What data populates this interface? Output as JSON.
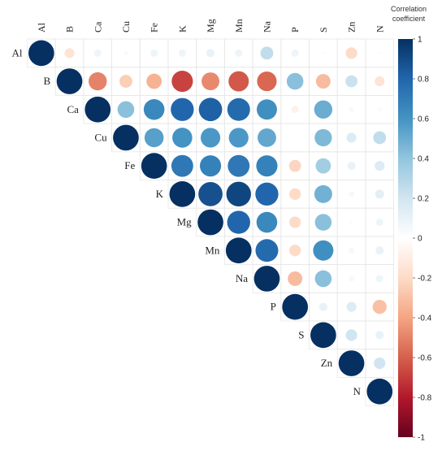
{
  "chart_data": {
    "type": "heatmap",
    "variables": [
      "Al",
      "B",
      "Ca",
      "Cu",
      "Fe",
      "K",
      "Mg",
      "Mn",
      "Na",
      "P",
      "S",
      "Zn",
      "N"
    ],
    "matrix_layout": "upper-triangular with diagonal",
    "legend": {
      "title_line1": "Correlation",
      "title_line2": "coefficient",
      "ticks": [
        "1",
        "0.8",
        "0.6",
        "0.4",
        "0.2",
        "0",
        "-0.2",
        "-0.4",
        "-0.6",
        "-0.8",
        "-1"
      ],
      "range": [
        -1,
        1
      ],
      "placement": "right"
    },
    "color_scale": {
      "negative_end": "#67001f",
      "mid_negative": "#e8826a",
      "zero": "#ffffff",
      "mid_positive": "#5fb6d8",
      "positive_end": "#053061"
    },
    "grid": true,
    "rows": [
      {
        "var": "Al",
        "values": [
          1.0,
          -0.15,
          0.08,
          0.03,
          0.08,
          0.08,
          0.1,
          0.08,
          0.25,
          0.08,
          0.02,
          -0.2,
          0.02
        ]
      },
      {
        "var": "B",
        "values": [
          1.0,
          -0.5,
          -0.25,
          -0.35,
          -0.68,
          -0.48,
          -0.62,
          -0.58,
          0.42,
          -0.32,
          0.22,
          -0.15
        ]
      },
      {
        "var": "Ca",
        "values": [
          1.0,
          0.42,
          0.65,
          0.8,
          0.82,
          0.78,
          0.62,
          -0.08,
          0.5,
          0.04,
          0.03
        ]
      },
      {
        "var": "Cu",
        "values": [
          1.0,
          0.55,
          0.6,
          0.58,
          0.58,
          0.52,
          0.0,
          0.45,
          0.15,
          0.25
        ]
      },
      {
        "var": "Fe",
        "values": [
          1.0,
          0.72,
          0.68,
          0.72,
          0.68,
          -0.22,
          0.35,
          0.1,
          0.15
        ]
      },
      {
        "var": "K",
        "values": [
          1.0,
          0.88,
          0.92,
          0.8,
          -0.2,
          0.48,
          -0.05,
          0.12
        ]
      },
      {
        "var": "Mg",
        "values": [
          1.0,
          0.8,
          0.65,
          -0.2,
          0.42,
          0.02,
          0.08
        ]
      },
      {
        "var": "Mn",
        "values": [
          1.0,
          0.78,
          -0.2,
          0.62,
          0.05,
          0.1
        ]
      },
      {
        "var": "Na",
        "values": [
          1.0,
          -0.32,
          0.42,
          0.05,
          0.08
        ]
      },
      {
        "var": "P",
        "values": [
          1.0,
          0.1,
          0.15,
          -0.3
        ]
      },
      {
        "var": "S",
        "values": [
          1.0,
          0.2,
          0.1
        ]
      },
      {
        "var": "Zn",
        "values": [
          1.0,
          0.2
        ]
      },
      {
        "var": "N",
        "values": [
          1.0
        ]
      }
    ]
  }
}
